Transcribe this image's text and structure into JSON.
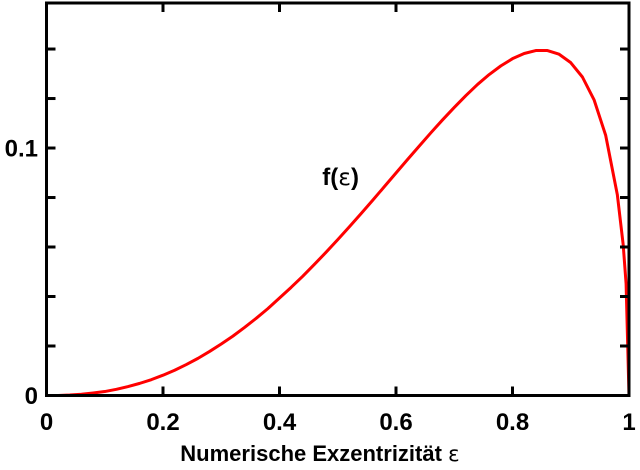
{
  "figure": {
    "background": "#ffffff"
  },
  "chart_data": {
    "type": "line",
    "title": "",
    "xlabel": "Numerische Exzentrizität ε",
    "xlabel_parts": [
      {
        "text": "Numerische Exzentrizität ",
        "style": "bold"
      },
      {
        "text": "ε",
        "style": "symbol"
      }
    ],
    "ylabel": "",
    "xlim": [
      0,
      1
    ],
    "ylim": [
      0,
      0.1586
    ],
    "x_ticks": [
      0,
      0.2,
      0.4,
      0.6,
      0.8,
      1
    ],
    "x_tick_labels": [
      "0",
      "0.2",
      "0.4",
      "0.6",
      "0.8",
      "1"
    ],
    "y_ticks": [
      0,
      0.02,
      0.04,
      0.06,
      0.08,
      0.1,
      0.12,
      0.14
    ],
    "y_tick_labels": [
      "0",
      "",
      "",
      "",
      "",
      "0.1",
      "",
      ""
    ],
    "grid": false,
    "legend_position": "none",
    "box": true,
    "tick_direction": "in",
    "axis_color": "#000000",
    "annotation": {
      "text": "f(ε)",
      "parts": [
        {
          "text": "f(",
          "style": "bold"
        },
        {
          "text": "ε",
          "style": "symbol"
        },
        {
          "text": ")",
          "style": "bold"
        }
      ],
      "x": 0.505,
      "y": 0.088
    },
    "series": [
      {
        "name": "f(ε)",
        "color": "#ff0000",
        "line_width": 3,
        "x": [
          0,
          0.02,
          0.04,
          0.06,
          0.08,
          0.1,
          0.12,
          0.14,
          0.16,
          0.18,
          0.2,
          0.22,
          0.24,
          0.26,
          0.28,
          0.3,
          0.32,
          0.34,
          0.36,
          0.38,
          0.4,
          0.42,
          0.44,
          0.46,
          0.48,
          0.5,
          0.52,
          0.54,
          0.56,
          0.58,
          0.6,
          0.62,
          0.64,
          0.66,
          0.68,
          0.7,
          0.72,
          0.74,
          0.76,
          0.78,
          0.8,
          0.82,
          0.84,
          0.86,
          0.88,
          0.9,
          0.92,
          0.94,
          0.96,
          0.98,
          0.99,
          0.995,
          1.0
        ],
        "y": [
          0,
          0.0,
          0.0002,
          0.0005,
          0.001,
          0.0016,
          0.0025,
          0.0036,
          0.0049,
          0.0064,
          0.0082,
          0.0102,
          0.0125,
          0.015,
          0.0178,
          0.0208,
          0.024,
          0.0275,
          0.0312,
          0.0351,
          0.0394,
          0.0437,
          0.0482,
          0.053,
          0.0579,
          0.063,
          0.0682,
          0.0735,
          0.0789,
          0.0844,
          0.0899,
          0.0954,
          0.1008,
          0.1062,
          0.1114,
          0.1164,
          0.1212,
          0.1257,
          0.1297,
          0.1332,
          0.1361,
          0.1382,
          0.1394,
          0.1394,
          0.1379,
          0.1345,
          0.1287,
          0.1195,
          0.1051,
          0.0811,
          0.061,
          0.0452,
          0
        ]
      }
    ]
  }
}
